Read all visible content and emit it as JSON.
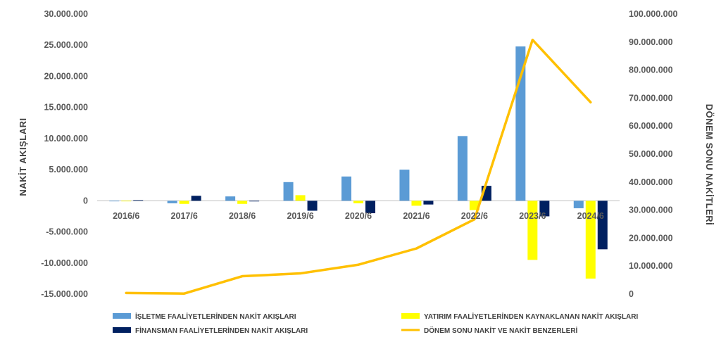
{
  "chart_data": {
    "type": "bar",
    "categories": [
      "2016/6",
      "2017/6",
      "2018/6",
      "2019/6",
      "2020/6",
      "2021/6",
      "2022/6",
      "2023/6",
      "2024/6"
    ],
    "series": [
      {
        "name": "İŞLETME FAALİYETLERİNDEN NAKİT AKIŞLARI",
        "type": "bar",
        "axis": "left",
        "color": "#5b9bd5",
        "values": [
          -50000,
          -400000,
          700000,
          3000000,
          3900000,
          5000000,
          10400000,
          24800000,
          -1200000
        ]
      },
      {
        "name": "YATIRIM FAALİYETLERİNDEN KAYNAKLANAN NAKİT AKIŞLARI",
        "type": "bar",
        "axis": "left",
        "color": "#ffff00",
        "values": [
          0,
          -500000,
          -500000,
          900000,
          -400000,
          -800000,
          -1500000,
          -9500000,
          -12500000
        ]
      },
      {
        "name": "FİNANSMAN FAALİYETLERİNDEN NAKİT AKIŞLARI",
        "type": "bar",
        "axis": "left",
        "color": "#002060",
        "values": [
          100000,
          800000,
          -100000,
          -1600000,
          -2000000,
          -600000,
          2400000,
          -2500000,
          -7800000
        ]
      },
      {
        "name": "DÖNEM SONU NAKİT VE NAKİT BENZERLERİ",
        "type": "line",
        "axis": "right",
        "color": "#ffc000",
        "values": [
          400000,
          200000,
          6400000,
          7400000,
          10500000,
          16300000,
          26700000,
          90800000,
          68500000
        ]
      }
    ],
    "ylabel": "NAKİT AKIŞLARI",
    "y2label": "DÖNEM SONU NAKİTLERİ",
    "ylim": [
      -15000000,
      30000000
    ],
    "y2lim": [
      0,
      100000000
    ],
    "yticks": [
      "30.000.000",
      "25.000.000",
      "20.000.000",
      "15.000.000",
      "10.000.000",
      "5.000.000",
      "0",
      "-5.000.000",
      "-10.000.000",
      "-15.000.000"
    ],
    "y2ticks": [
      "100.000.000",
      "90.000.000",
      "80.000.000",
      "70.000.000",
      "60.000.000",
      "50.000.000",
      "40.000.000",
      "30.000.000",
      "20.000.000",
      "10.000.000",
      "0"
    ],
    "grid": false,
    "legend_position": "bottom"
  }
}
